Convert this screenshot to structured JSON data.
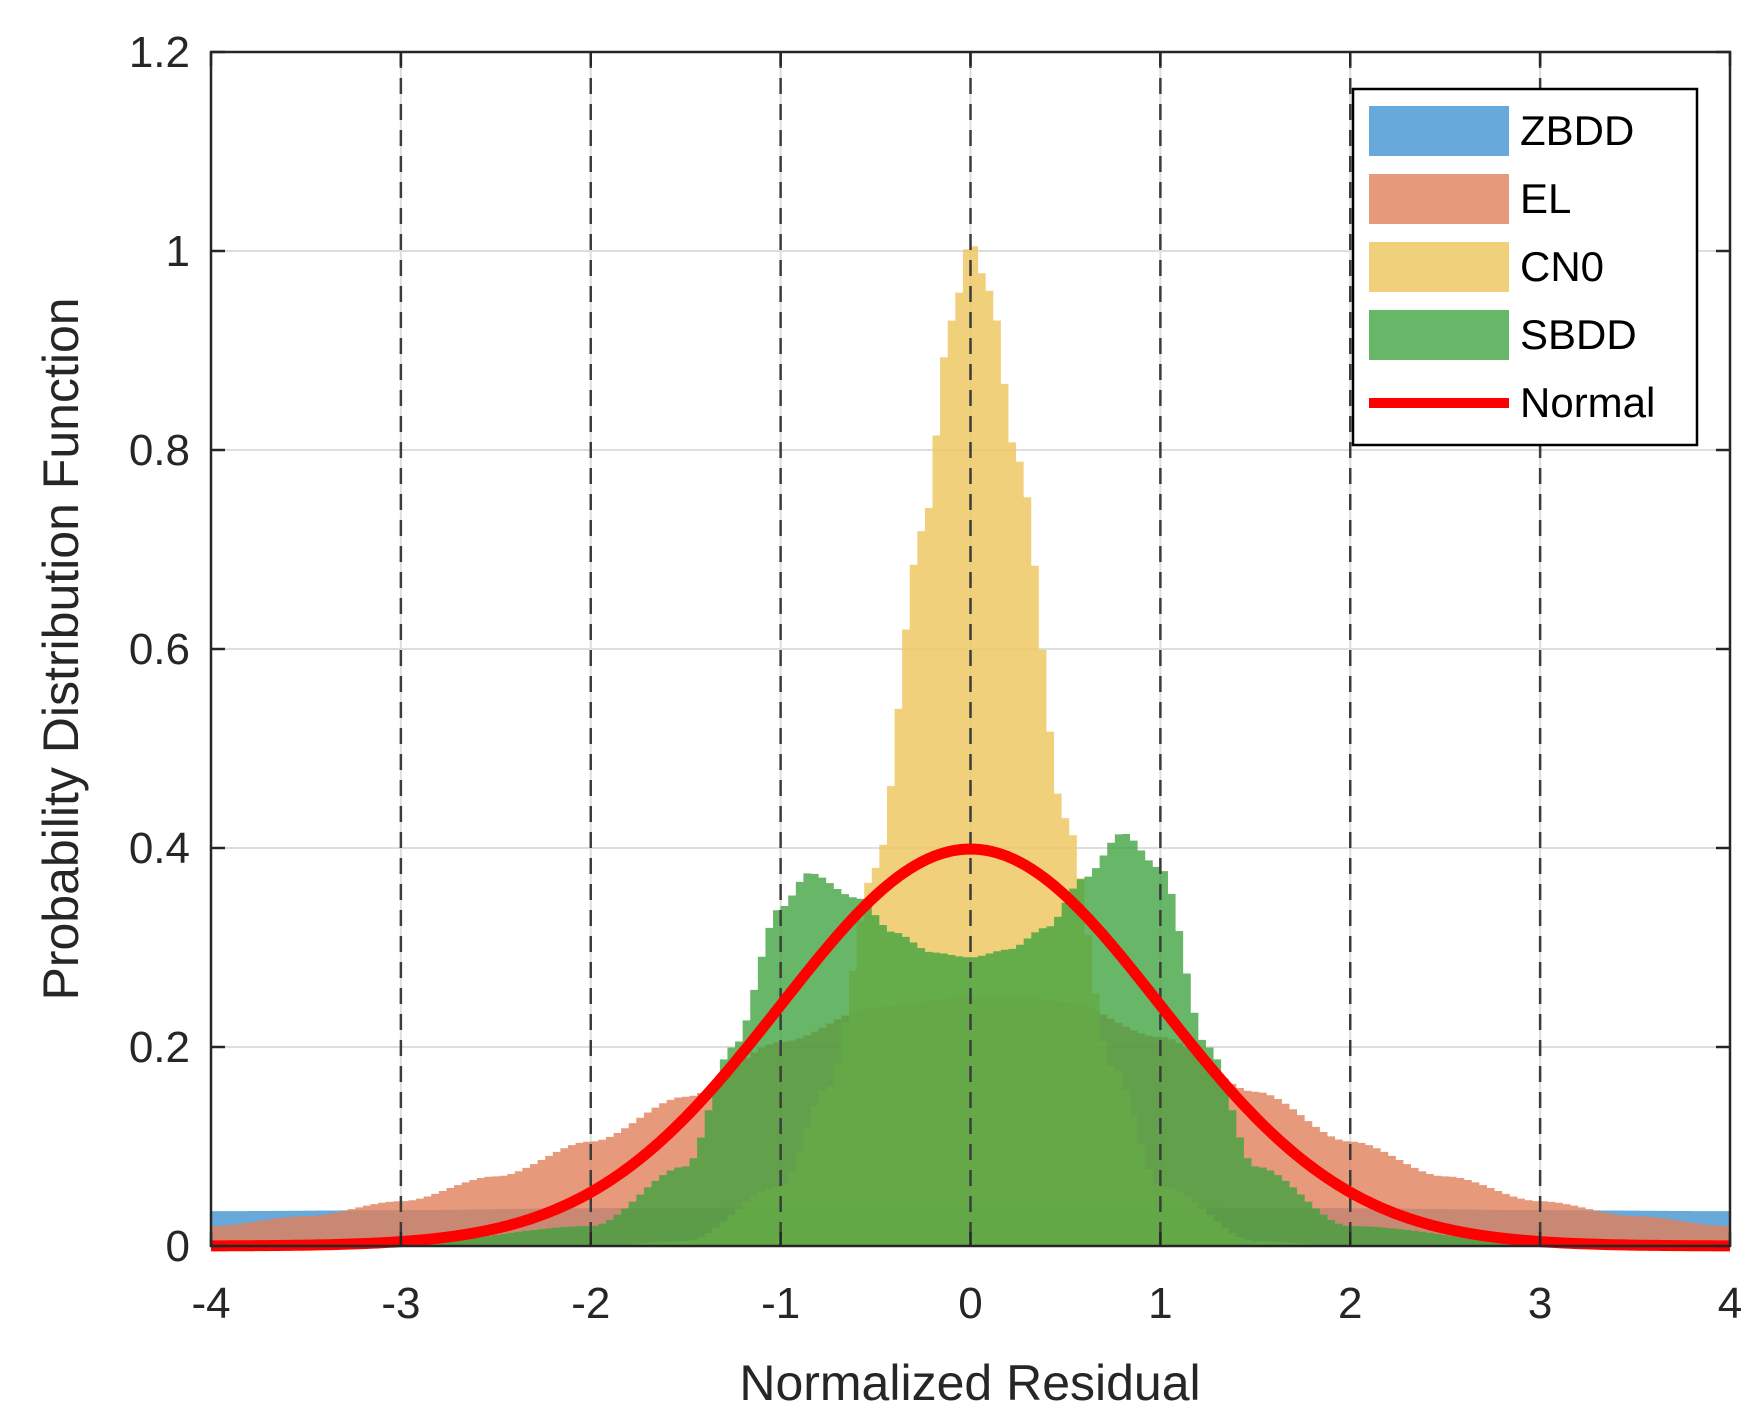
{
  "chart_data": {
    "type": "area",
    "title": "",
    "xlabel": "Normalized Residual",
    "ylabel": "Probability Distribution Function",
    "xlim": [
      -4,
      4
    ],
    "ylim": [
      0,
      1.2
    ],
    "xticks": [
      -4,
      -3,
      -2,
      -1,
      0,
      1,
      2,
      3,
      4
    ],
    "xtick_labels": [
      "-4",
      "-3",
      "-2",
      "-1",
      "0",
      "1",
      "2",
      "3",
      "4"
    ],
    "yticks": [
      0,
      0.2,
      0.4,
      0.6,
      0.8,
      1,
      1.2
    ],
    "ytick_labels": [
      "0",
      "0.2",
      "0.4",
      "0.6",
      "0.8",
      "1",
      "1.2"
    ],
    "grid": true,
    "dashed_vlines": [
      -3,
      -2,
      -1,
      0,
      1,
      2,
      3
    ],
    "legend_position": "top-right",
    "series": [
      {
        "name": "ZBDD",
        "kind": "histogram",
        "color": "#4d9ad6",
        "opacity": 0.85,
        "x": [
          -4,
          -3,
          -2,
          -1,
          0,
          1,
          2,
          3,
          4
        ],
        "y": [
          0.035,
          0.036,
          0.038,
          0.039,
          0.04,
          0.039,
          0.038,
          0.036,
          0.035
        ]
      },
      {
        "name": "EL",
        "kind": "histogram",
        "color": "#e0805a",
        "opacity": 0.8,
        "x": [
          -4,
          -3.5,
          -3,
          -2.5,
          -2,
          -1.5,
          -1,
          -0.5,
          0,
          0.25,
          0.5,
          1,
          1.5,
          2,
          2.5,
          3,
          3.5,
          4
        ],
        "y": [
          0.02,
          0.03,
          0.045,
          0.07,
          0.105,
          0.15,
          0.205,
          0.24,
          0.25,
          0.252,
          0.245,
          0.21,
          0.155,
          0.105,
          0.07,
          0.045,
          0.03,
          0.02
        ]
      },
      {
        "name": "CN0",
        "kind": "histogram",
        "color": "#efc865",
        "opacity": 0.85,
        "x": [
          -4,
          -2,
          -1.5,
          -1,
          -0.75,
          -0.5,
          -0.25,
          -0.1,
          0,
          0.1,
          0.25,
          0.5,
          0.75,
          1,
          1.5,
          2,
          4
        ],
        "y": [
          0,
          0,
          0.005,
          0.06,
          0.16,
          0.38,
          0.72,
          0.93,
          1.01,
          0.96,
          0.79,
          0.43,
          0.18,
          0.06,
          0.005,
          0,
          0
        ]
      },
      {
        "name": "SBDD",
        "kind": "histogram",
        "color": "#3ea23e",
        "opacity": 0.78,
        "x": [
          -4,
          -3,
          -2,
          -1.5,
          -1.25,
          -1,
          -0.85,
          -0.6,
          -0.4,
          -0.2,
          0,
          0.2,
          0.4,
          0.6,
          0.8,
          1,
          1.25,
          1.5,
          2,
          3,
          4
        ],
        "y": [
          0,
          0.002,
          0.02,
          0.08,
          0.2,
          0.34,
          0.375,
          0.35,
          0.315,
          0.295,
          0.29,
          0.298,
          0.32,
          0.37,
          0.415,
          0.38,
          0.2,
          0.08,
          0.02,
          0.002,
          0
        ]
      },
      {
        "name": "Normal",
        "kind": "line",
        "color": "#ff0000",
        "mean": 0,
        "std": 1,
        "x": [
          -4,
          -3,
          -2,
          -1,
          0,
          1,
          2,
          3,
          4
        ],
        "y": [
          0.0001,
          0.0044,
          0.054,
          0.242,
          0.399,
          0.242,
          0.054,
          0.0044,
          0.0001
        ]
      }
    ],
    "legend": [
      "ZBDD",
      "EL",
      "CN0",
      "SBDD",
      "Normal"
    ]
  }
}
